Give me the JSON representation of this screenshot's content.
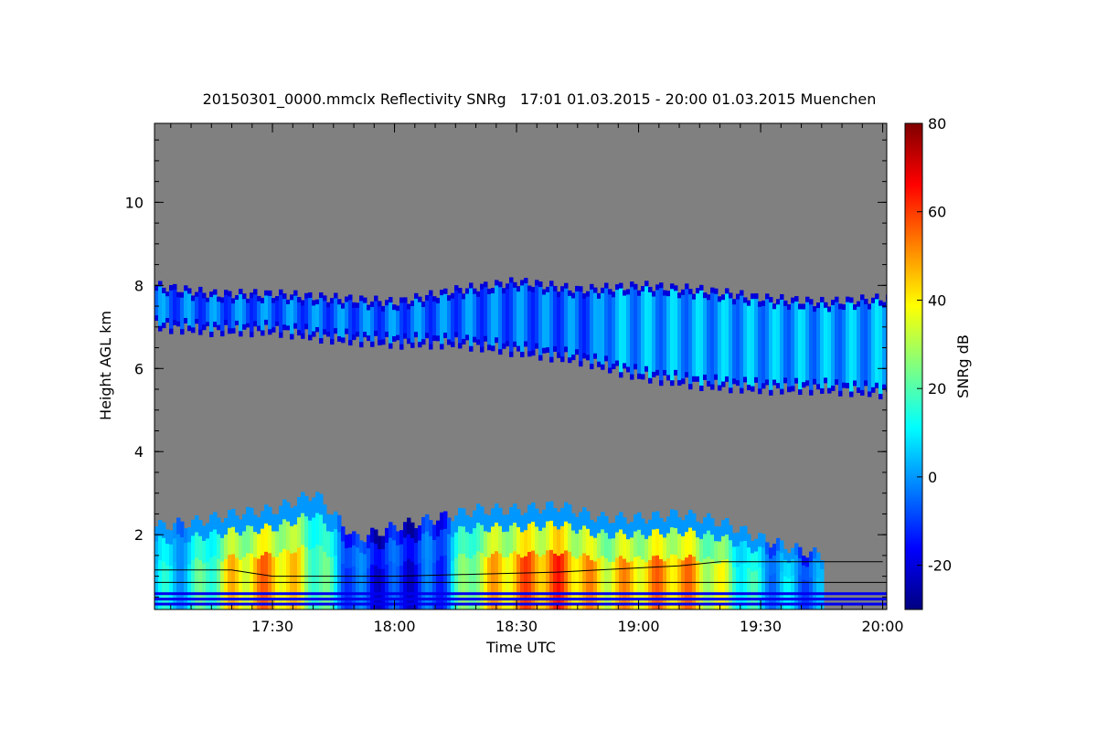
{
  "chart_data": {
    "type": "heatmap",
    "title": "20150301_0000.mmclx Reflectivity SNRg   17:01 01.03.2015 - 20:00 01.03.2015 Muenchen",
    "xlabel": "Time UTC",
    "ylabel": "Height AGL km",
    "xlim": [
      "17:01",
      "20:01"
    ],
    "ylim": [
      0.2,
      11.9
    ],
    "x_ticks": [
      "17:30",
      "18:00",
      "18:30",
      "19:00",
      "19:30",
      "20:00"
    ],
    "y_ticks": [
      2,
      4,
      6,
      8,
      10
    ],
    "background": "#808080",
    "colorbar": {
      "label": "SNRg dB",
      "range": [
        -30,
        80
      ],
      "ticks": [
        -20,
        0,
        20,
        40,
        60,
        80
      ],
      "colormap": [
        "#000080",
        "#0000ff",
        "#0080ff",
        "#00ffff",
        "#80ff80",
        "#ffff00",
        "#ff8000",
        "#ff0000",
        "#800000"
      ]
    },
    "upper_cloud": {
      "time": [
        "17:01",
        "17:15",
        "17:30",
        "17:45",
        "18:00",
        "18:15",
        "18:30",
        "18:45",
        "19:00",
        "19:15",
        "19:30",
        "19:45",
        "20:00"
      ],
      "top_km": [
        8.0,
        7.8,
        7.8,
        7.7,
        7.6,
        7.9,
        8.1,
        7.9,
        8.0,
        7.9,
        7.7,
        7.6,
        7.7
      ],
      "base_km": [
        7.0,
        6.9,
        6.9,
        6.7,
        6.6,
        6.6,
        6.4,
        6.2,
        5.8,
        5.6,
        5.5,
        5.5,
        5.4
      ],
      "snr_db": -5
    },
    "lower_cloud": {
      "time": [
        "17:01",
        "17:10",
        "17:20",
        "17:30",
        "17:40",
        "17:50",
        "18:00",
        "18:10",
        "18:20",
        "18:30",
        "18:40",
        "18:50",
        "19:00",
        "19:10",
        "19:20",
        "19:30",
        "19:40",
        "19:45"
      ],
      "top_km": [
        2.2,
        2.3,
        2.5,
        2.6,
        3.0,
        1.9,
        2.2,
        2.4,
        2.6,
        2.6,
        2.7,
        2.4,
        2.4,
        2.5,
        2.3,
        1.9,
        1.6,
        1.5
      ],
      "snr_db": [
        5,
        10,
        40,
        50,
        25,
        -10,
        -15,
        -10,
        35,
        50,
        55,
        40,
        45,
        50,
        30,
        5,
        0,
        -5
      ]
    },
    "black_lines": [
      {
        "time": [
          "17:01",
          "20:01"
        ],
        "height_km": [
          0.85,
          0.85
        ]
      },
      {
        "time": [
          "17:01",
          "17:20",
          "17:30",
          "18:00",
          "18:20",
          "18:40",
          "19:00",
          "19:10",
          "19:20",
          "20:00"
        ],
        "height_km": [
          1.15,
          1.15,
          1.0,
          1.0,
          1.05,
          1.1,
          1.2,
          1.25,
          1.35,
          1.35
        ]
      }
    ]
  }
}
